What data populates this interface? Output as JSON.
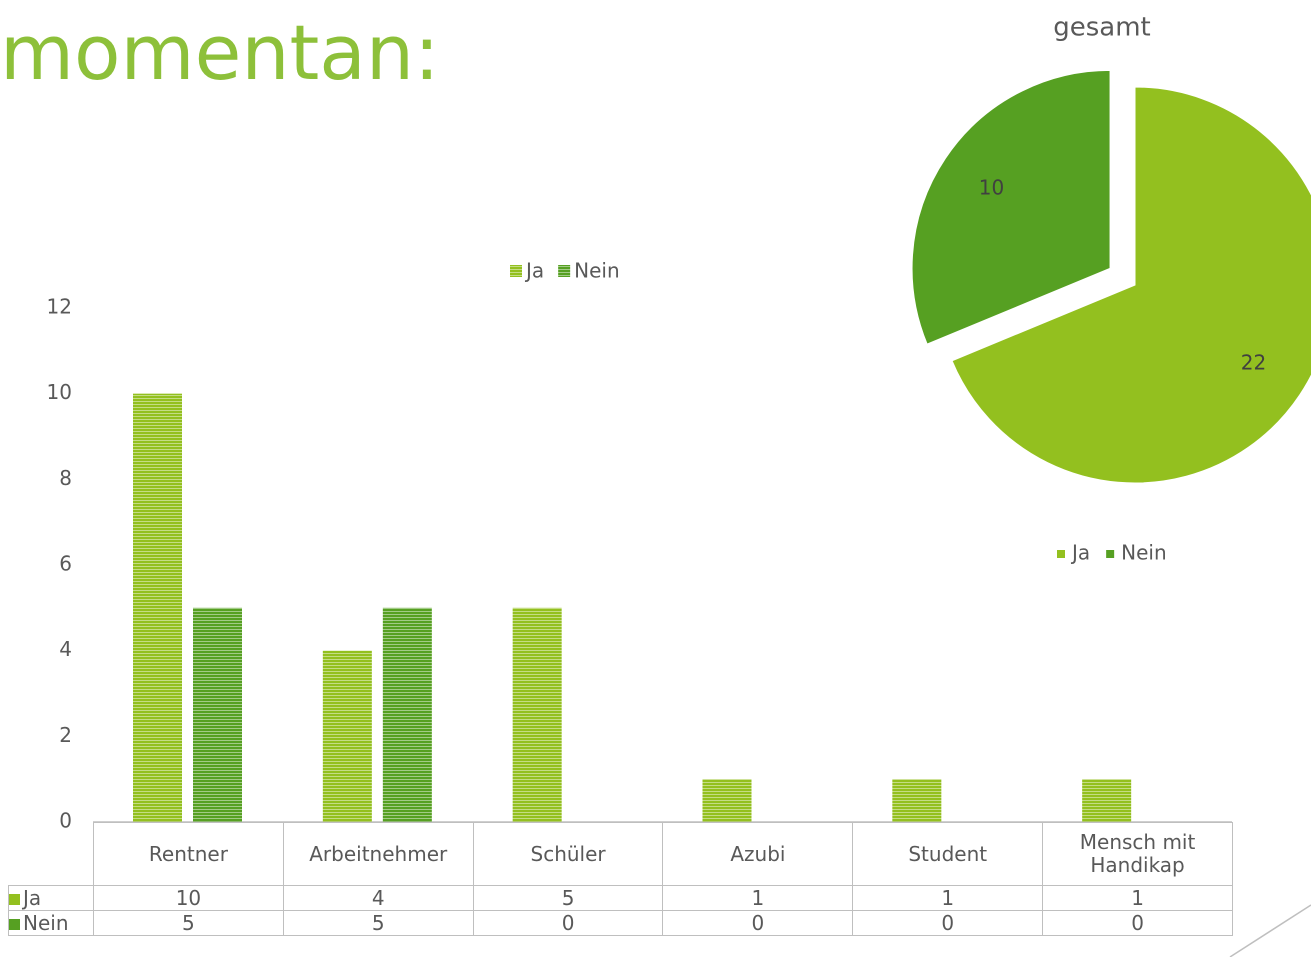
{
  "slide_title": "momentan:",
  "chart_data": [
    {
      "type": "bar",
      "categories": [
        "Rentner",
        "Arbeitnehmer",
        "Schüler",
        "Azubi",
        "Student",
        "Mensch mit Handikap"
      ],
      "series": [
        {
          "name": "Ja",
          "color": "#93c01f",
          "values": [
            10,
            4,
            5,
            1,
            1,
            1
          ]
        },
        {
          "name": "Nein",
          "color": "#56a022",
          "values": [
            5,
            5,
            0,
            0,
            0,
            0
          ]
        }
      ],
      "ylim": [
        0,
        12
      ],
      "yticks": [
        0,
        2,
        4,
        6,
        8,
        10,
        12
      ],
      "legend": "top",
      "data_table": true
    },
    {
      "type": "pie",
      "title": "gesamt",
      "categories": [
        "Ja",
        "Nein"
      ],
      "values": [
        22,
        10
      ],
      "colors": [
        "#93c01f",
        "#56a022"
      ],
      "explode": [
        false,
        true
      ],
      "legend": "bottom"
    }
  ]
}
